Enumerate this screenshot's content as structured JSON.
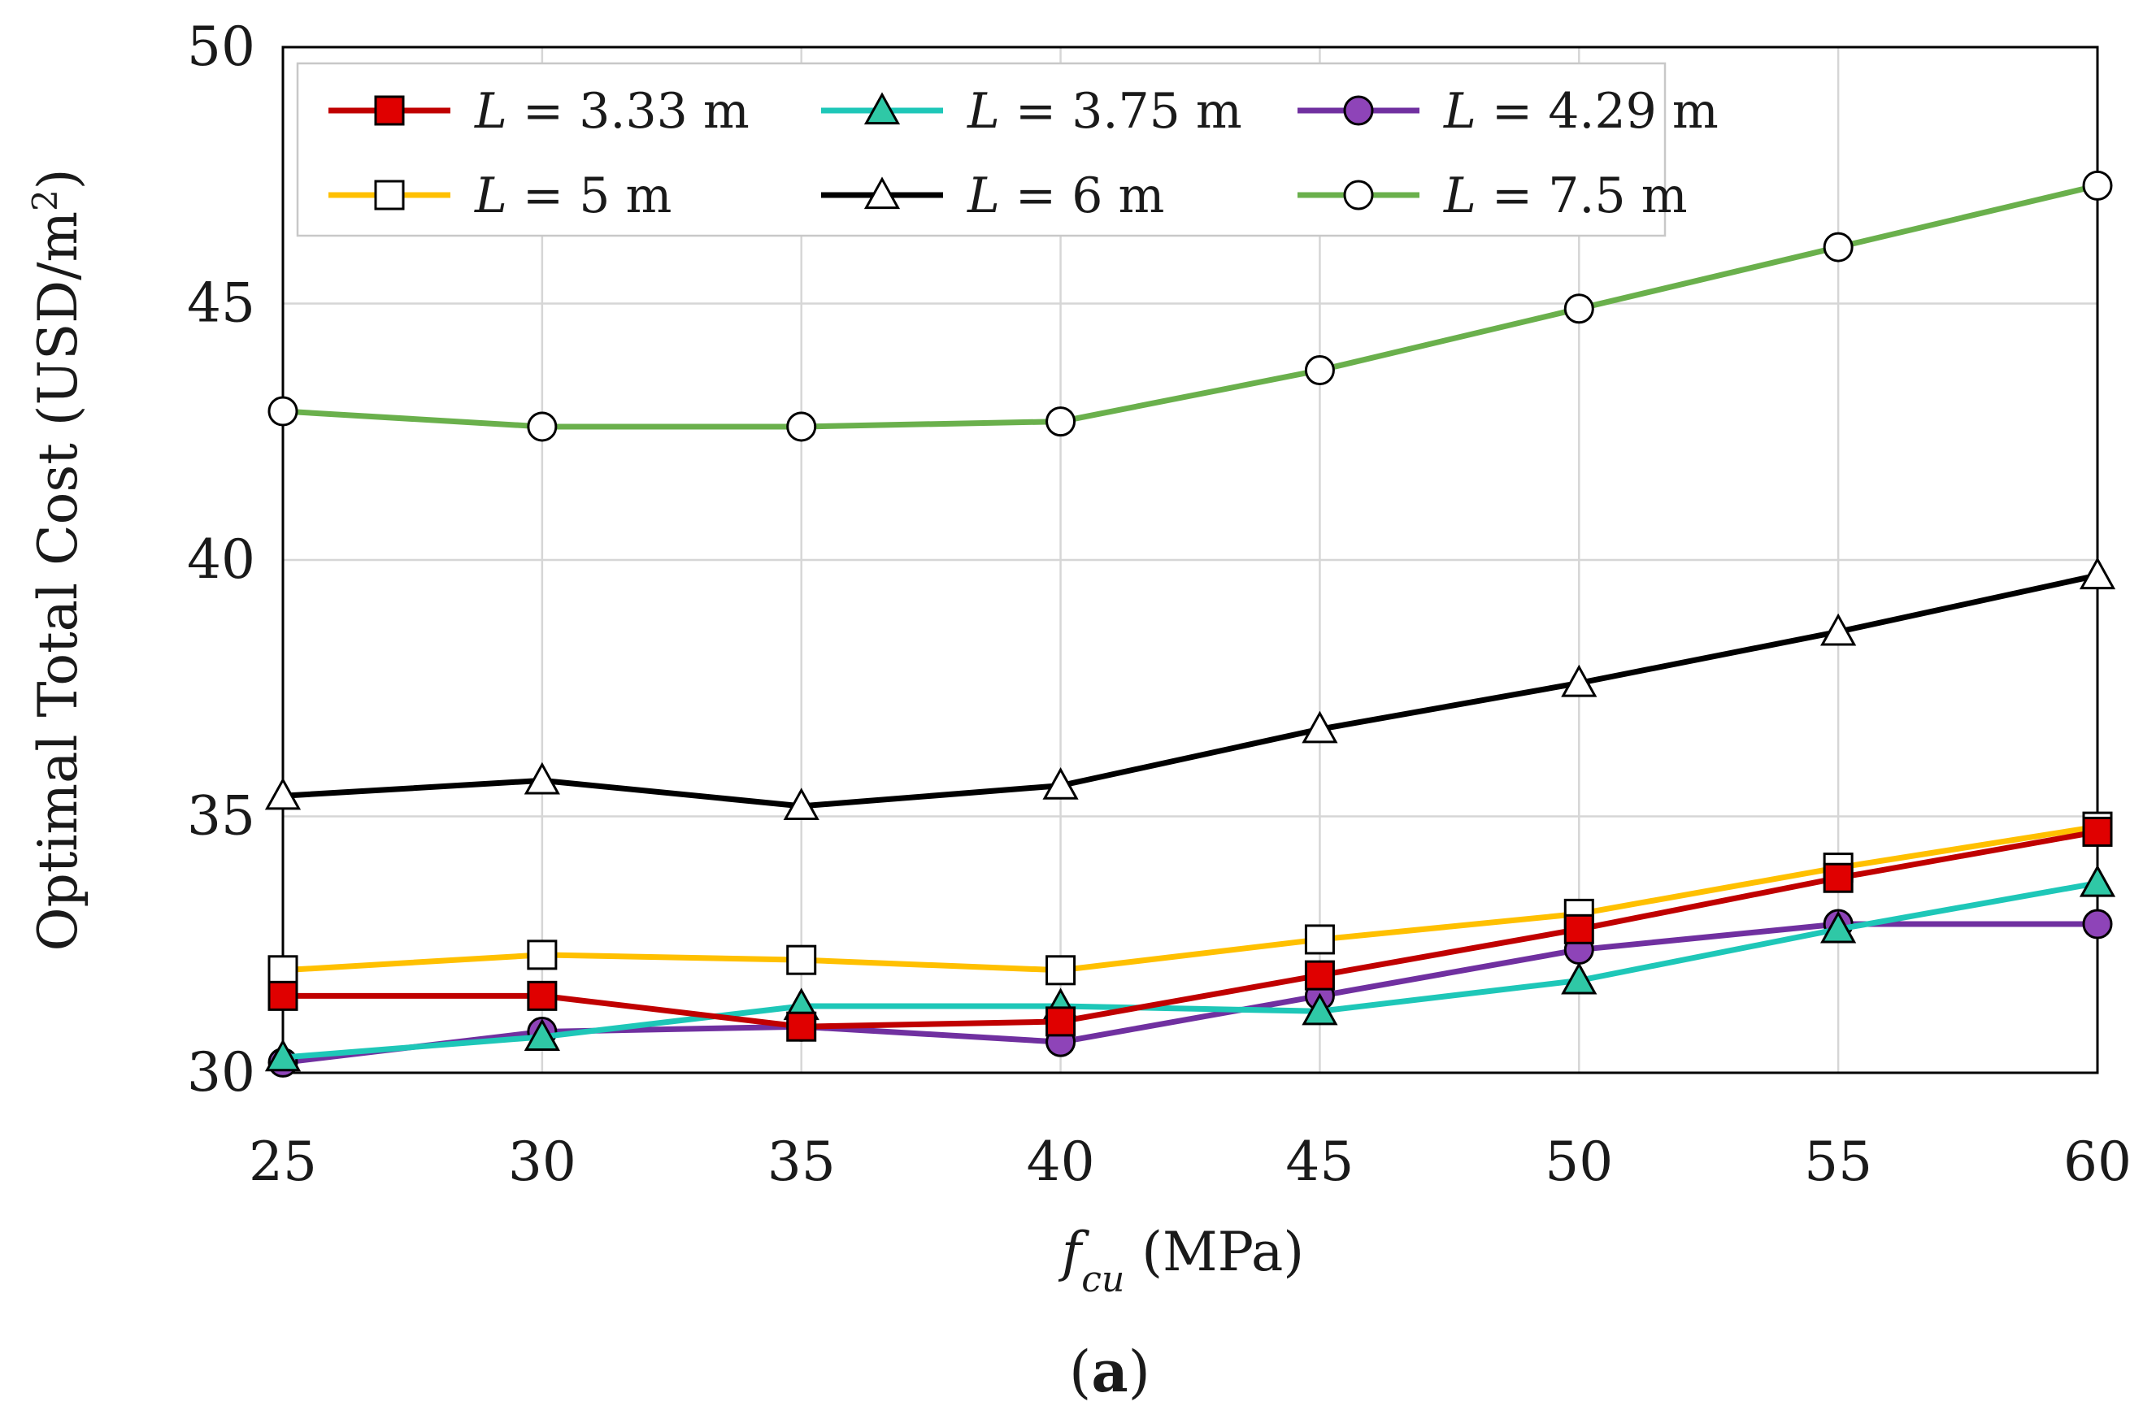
{
  "chart_data": {
    "type": "line",
    "panel_label": "a",
    "x": [
      25,
      30,
      35,
      40,
      45,
      50,
      55,
      60
    ],
    "xlim": [
      25,
      60
    ],
    "ylim": [
      30,
      50
    ],
    "xticks": [
      "25",
      "30",
      "35",
      "40",
      "45",
      "50",
      "55",
      "60"
    ],
    "yticks": [
      "30",
      "35",
      "40",
      "45",
      "50"
    ],
    "xlabel": {
      "symbol": "f",
      "subscript": "cu",
      "unit": "(MPa)"
    },
    "ylabel": {
      "text": "Optimal Total Cost (USD/m",
      "superscript": "2",
      "close": ")"
    },
    "grid": true,
    "legend_position": "top-left",
    "series": [
      {
        "name": "L = 3.33 m",
        "var": "L",
        "rest": " = 3.33 m",
        "color": "#c00000",
        "marker": "square",
        "marker_fill": "#e00000",
        "values": [
          31.5,
          31.5,
          30.9,
          31.0,
          31.9,
          32.8,
          33.8,
          34.7
        ]
      },
      {
        "name": "L = 3.75 m",
        "var": "L",
        "rest": " = 3.75 m",
        "color": "#1ec7b8",
        "marker": "triangle",
        "marker_fill": "#2fc8a6",
        "values": [
          30.3,
          30.7,
          31.3,
          31.3,
          31.2,
          31.8,
          32.8,
          33.7
        ]
      },
      {
        "name": "L = 4.29 m",
        "var": "L",
        "rest": " = 4.29 m",
        "color": "#7030a0",
        "marker": "circle",
        "marker_fill": "#8e44b8",
        "values": [
          30.2,
          30.8,
          30.9,
          30.6,
          31.5,
          32.4,
          32.9,
          32.9
        ]
      },
      {
        "name": "L = 5 m",
        "var": "L",
        "rest": " = 5 m",
        "color": "#ffc000",
        "marker": "square",
        "marker_fill": "#ffffff",
        "values": [
          32.0,
          32.3,
          32.2,
          32.0,
          32.6,
          33.1,
          34.0,
          34.8
        ]
      },
      {
        "name": "L = 6 m",
        "var": "L",
        "rest": " = 6 m",
        "color": "#000000",
        "marker": "triangle",
        "marker_fill": "#ffffff",
        "values": [
          35.4,
          35.7,
          35.2,
          35.6,
          36.7,
          37.6,
          38.6,
          39.7
        ]
      },
      {
        "name": "L = 7.5 m",
        "var": "L",
        "rest": " = 7.5 m",
        "color": "#6ab04c",
        "marker": "circle",
        "marker_fill": "#ffffff",
        "values": [
          42.9,
          42.6,
          42.6,
          42.7,
          43.7,
          44.9,
          46.1,
          47.3
        ]
      }
    ]
  }
}
